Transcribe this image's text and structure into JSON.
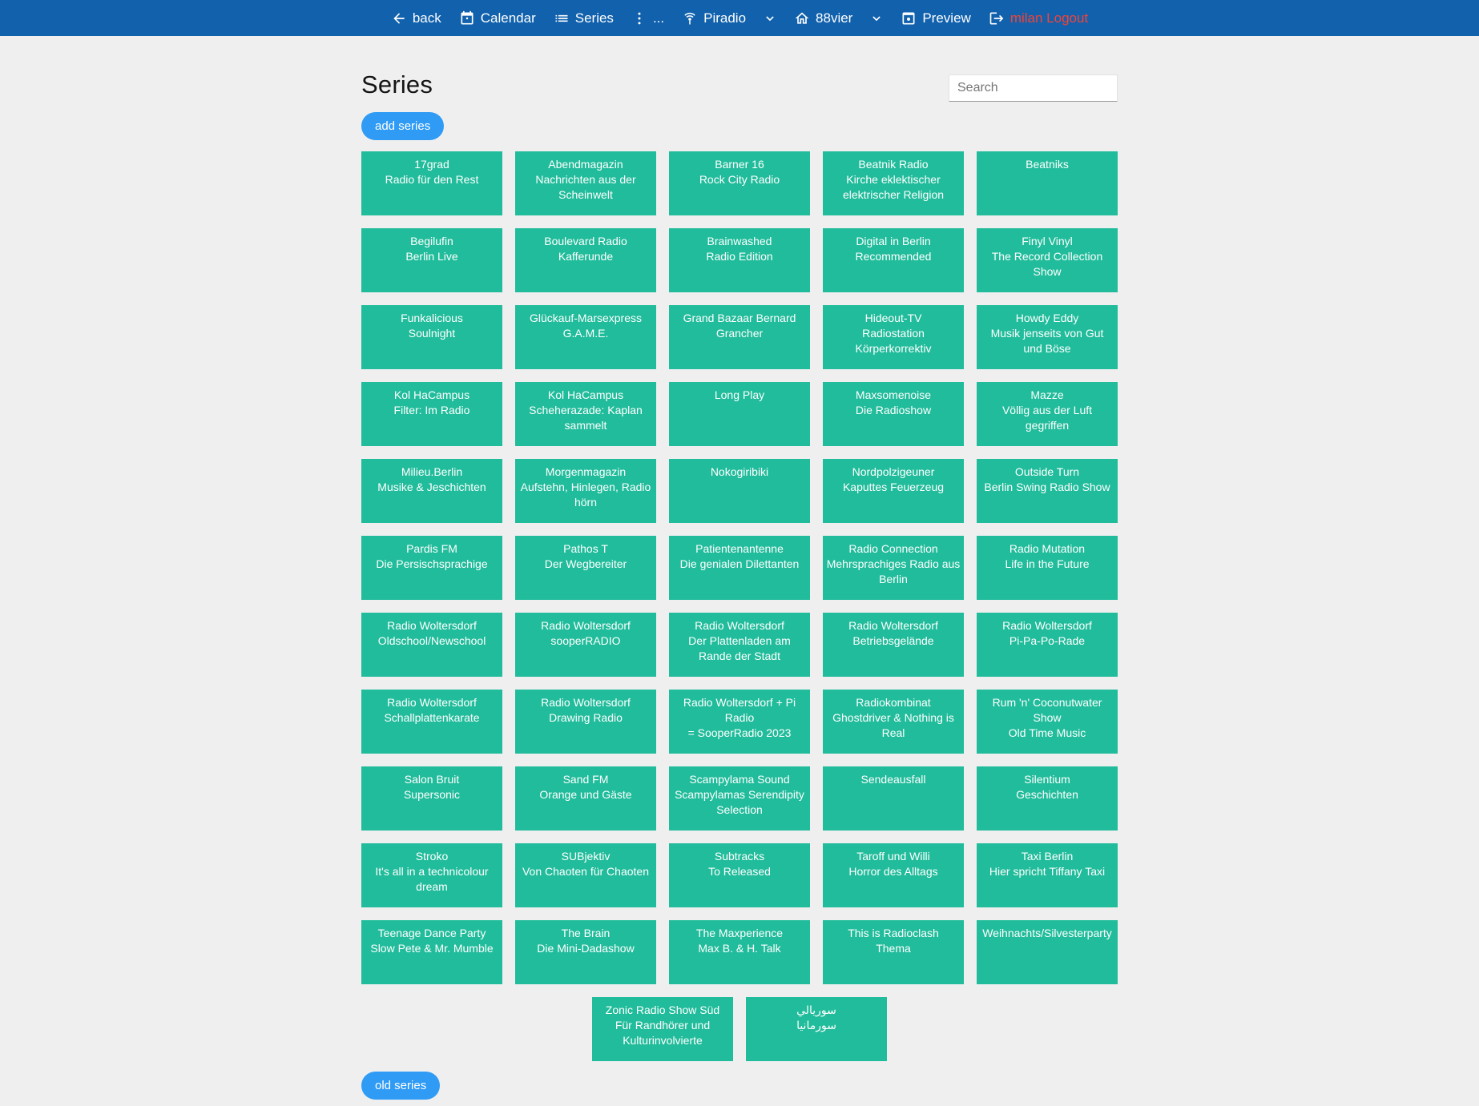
{
  "colors": {
    "nav_background": "#1161ad",
    "card_background": "#21bc9b",
    "button_blue": "#2f9bf5",
    "logout_red": "#f44336",
    "page_background": "#efefef"
  },
  "nav": {
    "items": [
      {
        "id": "back",
        "icon": "arrow-left-icon",
        "label": "back"
      },
      {
        "id": "calendar",
        "icon": "calendar-icon",
        "label": "Calendar"
      },
      {
        "id": "series",
        "icon": "list-icon",
        "label": "Series"
      },
      {
        "id": "more",
        "icon": "more-vert-icon",
        "label": "..."
      },
      {
        "id": "piradio",
        "icon": "antenna-icon",
        "label": "Piradio"
      },
      {
        "id": "piradio-dropdown",
        "icon": "chevron-down-icon",
        "label": ""
      },
      {
        "id": "88vier",
        "icon": "home-icon",
        "label": "88vier"
      },
      {
        "id": "station-dropdown",
        "icon": "chevron-down-icon",
        "label": ""
      },
      {
        "id": "preview",
        "icon": "preview-icon",
        "label": "Preview"
      },
      {
        "id": "logout",
        "icon": "logout-icon",
        "label": "milan Logout",
        "label_color": "#f44336"
      }
    ]
  },
  "page": {
    "title": "Series",
    "search_placeholder": "Search",
    "add_button_label": "add series",
    "old_button_label": "old series"
  },
  "series": [
    {
      "name": "17grad",
      "subtitle": "Radio für den Rest"
    },
    {
      "name": "Abendmagazin",
      "subtitle": "Nachrichten aus der Scheinwelt"
    },
    {
      "name": "Barner 16",
      "subtitle": "Rock City Radio"
    },
    {
      "name": "Beatnik Radio",
      "subtitle": "Kirche eklektischer elektrischer Religion"
    },
    {
      "name": "Beatniks",
      "subtitle": ""
    },
    {
      "name": "Begilufin",
      "subtitle": "Berlin Live"
    },
    {
      "name": "Boulevard Radio",
      "subtitle": "Kafferunde"
    },
    {
      "name": "Brainwashed",
      "subtitle": "Radio Edition"
    },
    {
      "name": "Digital in Berlin",
      "subtitle": "Recommended"
    },
    {
      "name": "Finyl Vinyl",
      "subtitle": "The Record Collection Show"
    },
    {
      "name": "Funkalicious",
      "subtitle": "Soulnight"
    },
    {
      "name": "Glückauf-Marsexpress",
      "subtitle": "G.A.M.E."
    },
    {
      "name": "Grand Bazaar Bernard Grancher",
      "subtitle": ""
    },
    {
      "name": "Hideout-TV",
      "subtitle": "Radiostation Körperkorrektiv"
    },
    {
      "name": "Howdy Eddy",
      "subtitle": "Musik jenseits von Gut und Böse"
    },
    {
      "name": "Kol HaCampus",
      "subtitle": "Filter: Im Radio"
    },
    {
      "name": "Kol HaCampus",
      "subtitle": "Scheherazade: Kaplan sammelt"
    },
    {
      "name": "Long Play",
      "subtitle": ""
    },
    {
      "name": "Maxsomenoise",
      "subtitle": "Die Radioshow"
    },
    {
      "name": "Mazze",
      "subtitle": "Völlig aus der Luft gegriffen"
    },
    {
      "name": "Milieu.Berlin",
      "subtitle": "Musike & Jeschichten"
    },
    {
      "name": "Morgenmagazin",
      "subtitle": "Aufstehn, Hinlegen, Radio hörn"
    },
    {
      "name": "Nokogiribiki",
      "subtitle": ""
    },
    {
      "name": "Nordpolzigeuner",
      "subtitle": "Kaputtes Feuerzeug"
    },
    {
      "name": "Outside Turn",
      "subtitle": "Berlin Swing Radio Show"
    },
    {
      "name": "Pardis FM",
      "subtitle": "Die Persischsprachige"
    },
    {
      "name": "Pathos T",
      "subtitle": "Der Wegbereiter"
    },
    {
      "name": "Patientenantenne",
      "subtitle": "Die genialen Dilettanten"
    },
    {
      "name": "Radio Connection",
      "subtitle": "Mehrsprachiges Radio aus Berlin"
    },
    {
      "name": "Radio Mutation",
      "subtitle": "Life in the Future"
    },
    {
      "name": "Radio Woltersdorf",
      "subtitle": "Oldschool/Newschool"
    },
    {
      "name": "Radio Woltersdorf",
      "subtitle": "sooperRADIO"
    },
    {
      "name": "Radio Woltersdorf",
      "subtitle": "Der Plattenladen am Rande der Stadt"
    },
    {
      "name": "Radio Woltersdorf",
      "subtitle": "Betriebsgelände"
    },
    {
      "name": "Radio Woltersdorf",
      "subtitle": "Pi-Pa-Po-Rade"
    },
    {
      "name": "Radio Woltersdorf",
      "subtitle": "Schallplattenkarate"
    },
    {
      "name": "Radio Woltersdorf",
      "subtitle": "Drawing Radio"
    },
    {
      "name": "Radio Woltersdorf + Pi Radio",
      "subtitle": "= SooperRadio 2023"
    },
    {
      "name": "Radiokombinat",
      "subtitle": "Ghostdriver & Nothing is Real"
    },
    {
      "name": "Rum 'n' Coconutwater Show",
      "subtitle": "Old Time Music"
    },
    {
      "name": "Salon Bruit",
      "subtitle": "Supersonic"
    },
    {
      "name": "Sand FM",
      "subtitle": "Orange und Gäste"
    },
    {
      "name": "Scampylama Sound",
      "subtitle": "Scampylamas Serendipity Selection"
    },
    {
      "name": "Sendeausfall",
      "subtitle": ""
    },
    {
      "name": "Silentium",
      "subtitle": "Geschichten"
    },
    {
      "name": "Stroko",
      "subtitle": "It's all in a technicolour dream"
    },
    {
      "name": "SUBjektiv",
      "subtitle": "Von Chaoten für Chaoten"
    },
    {
      "name": "Subtracks",
      "subtitle": "To Released"
    },
    {
      "name": "Taroff und Willi",
      "subtitle": "Horror des Alltags"
    },
    {
      "name": "Taxi Berlin",
      "subtitle": "Hier spricht Tiffany Taxi"
    },
    {
      "name": "Teenage Dance Party",
      "subtitle": "Slow Pete & Mr. Mumble"
    },
    {
      "name": "The Brain",
      "subtitle": "Die Mini-Dadashow"
    },
    {
      "name": "The Maxperience",
      "subtitle": "Max B. & H. Talk"
    },
    {
      "name": "This is Radioclash",
      "subtitle": "Thema"
    },
    {
      "name": "Weihnachts/Silvesterparty",
      "subtitle": "",
      "nowrap": true
    },
    {
      "name": "Zonic Radio Show Süd",
      "subtitle": "Für Randhörer und Kulturinvolvierte"
    },
    {
      "name": "سوريالي",
      "subtitle": "سورمانيا"
    }
  ]
}
